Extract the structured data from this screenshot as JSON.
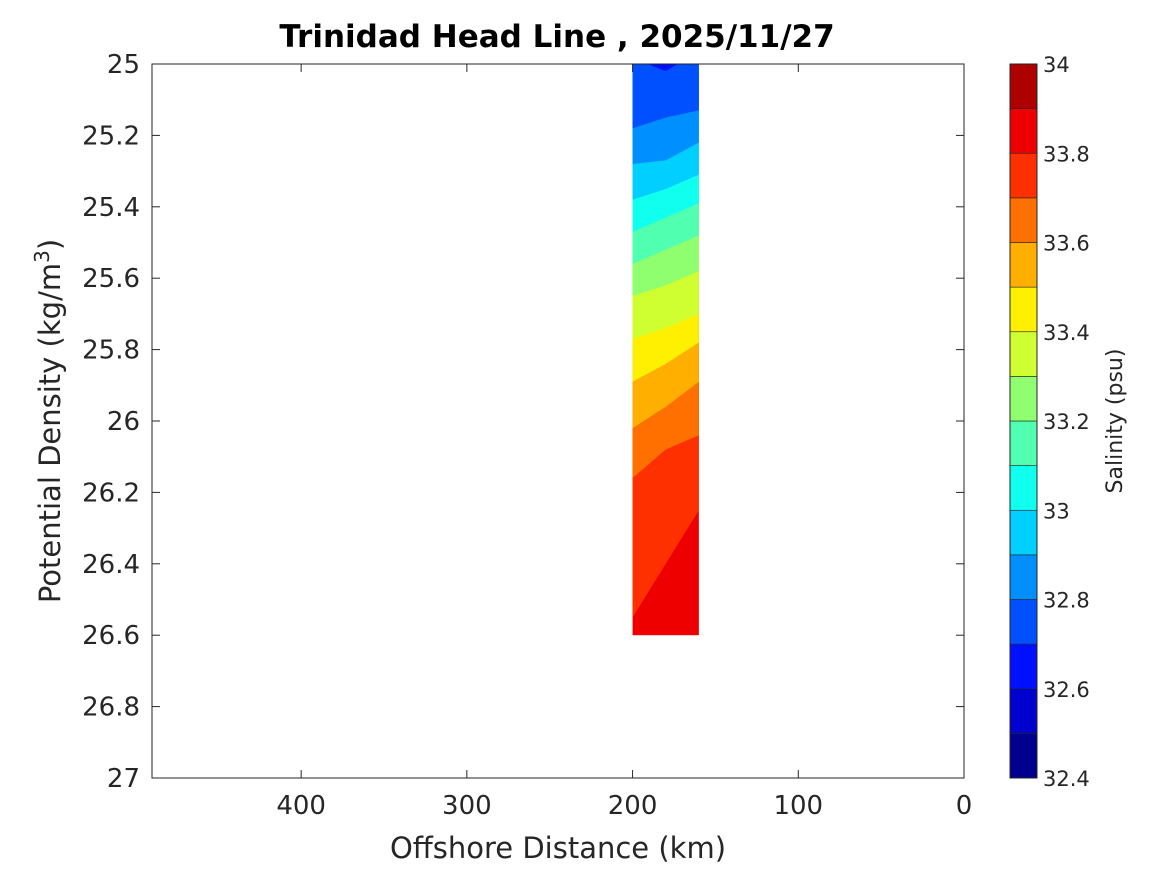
{
  "chart_data": {
    "type": "contour",
    "title": "Trinidad Head Line , 2025/11/27",
    "xlabel": "Offshore Distance (km)",
    "ylabel_main": "Potential Density (kg/m",
    "ylabel_sup": "3",
    "ylabel_close": ")",
    "xlim": [
      490,
      0
    ],
    "ylim": [
      25,
      27
    ],
    "x_reversed": true,
    "y_reversed": true,
    "x_ticks": [
      400,
      300,
      200,
      100,
      0
    ],
    "x_tick_labels": [
      "400",
      "300",
      "200",
      "100",
      "0"
    ],
    "y_ticks": [
      25,
      25.2,
      25.4,
      25.6,
      25.8,
      26,
      26.2,
      26.4,
      26.6,
      26.8,
      27
    ],
    "y_tick_labels": [
      "25",
      "25.2",
      "25.4",
      "25.6",
      "25.8",
      "26",
      "26.2",
      "26.4",
      "26.6",
      "26.8",
      "27"
    ],
    "grid": false,
    "colorbar": {
      "label": "Salinity (psu)",
      "range": [
        32.4,
        34
      ],
      "levels": [
        32.4,
        32.5,
        32.6,
        32.7,
        32.8,
        32.9,
        33.0,
        33.1,
        33.2,
        33.3,
        33.4,
        33.5,
        33.6,
        33.7,
        33.8,
        33.9,
        34.0
      ],
      "colors": [
        "#00008f",
        "#0000cf",
        "#0010ff",
        "#0050ff",
        "#008fff",
        "#00cfff",
        "#10ffef",
        "#50ffaf",
        "#8fff70",
        "#cfff30",
        "#ffef00",
        "#ffaf00",
        "#ff7000",
        "#ff3000",
        "#ef0000",
        "#af0000"
      ],
      "ticks": [
        32.4,
        32.6,
        32.8,
        33,
        33.2,
        33.4,
        33.6,
        33.8,
        34
      ],
      "tick_labels": [
        "32.4",
        "32.6",
        "32.8",
        "33",
        "33.2",
        "33.4",
        "33.6",
        "33.8",
        "34"
      ]
    },
    "data_x_range": [
      160,
      200
    ],
    "data_density_range": [
      25,
      26.6
    ],
    "salinity_boundaries": [
      {
        "level": 32.7,
        "densities": [
          25.18,
          25.15,
          25.13
        ]
      },
      {
        "level": 32.8,
        "densities": [
          25.28,
          25.27,
          25.22
        ]
      },
      {
        "level": 32.9,
        "densities": [
          25.38,
          25.35,
          25.31
        ]
      },
      {
        "level": 33.0,
        "densities": [
          25.47,
          25.43,
          25.39
        ]
      },
      {
        "level": 33.1,
        "densities": [
          25.56,
          25.52,
          25.48
        ]
      },
      {
        "level": 33.2,
        "densities": [
          25.65,
          25.62,
          25.58
        ]
      },
      {
        "level": 33.3,
        "densities": [
          25.77,
          25.74,
          25.7
        ]
      },
      {
        "level": 33.4,
        "densities": [
          25.89,
          25.84,
          25.78
        ]
      },
      {
        "level": 33.5,
        "densities": [
          26.02,
          25.96,
          25.89
        ]
      },
      {
        "level": 33.6,
        "densities": [
          26.16,
          26.08,
          26.04
        ]
      },
      {
        "level": 33.7,
        "densities": [
          26.55,
          26.4,
          26.25
        ]
      }
    ]
  }
}
